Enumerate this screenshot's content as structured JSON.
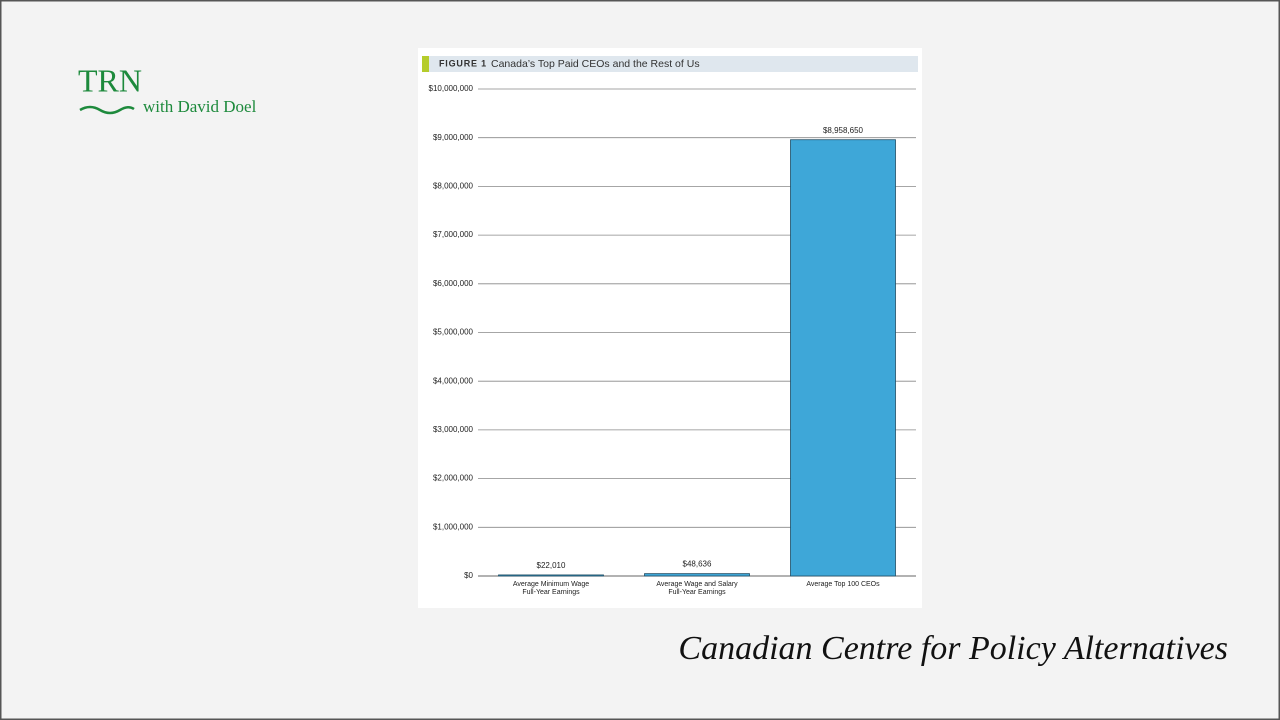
{
  "branding": {
    "logo": "TRN",
    "subtitle": "with David Doel"
  },
  "caption": "Canadian Centre for Policy Alternatives",
  "chart_data": {
    "type": "bar",
    "figure_label": "FIGURE 1",
    "title": "Canada’s Top Paid CEOs and the Rest of Us",
    "categories": [
      [
        "Average Minimum Wage",
        "Full-Year Earnings"
      ],
      [
        "Average Wage and Salary",
        "Full-Year Earnings"
      ],
      [
        "Average Top 100 CEOs"
      ]
    ],
    "values": [
      22010,
      48636,
      8958650
    ],
    "value_labels": [
      "$22,010",
      "$48,636",
      "$8,958,650"
    ],
    "color": "#3ea7d8",
    "ylim": [
      0,
      10000000
    ],
    "yticks": [
      {
        "value": 0,
        "label": "$0"
      },
      {
        "value": 1000000,
        "label": "$1,000,000"
      },
      {
        "value": 2000000,
        "label": "$2,000,000"
      },
      {
        "value": 3000000,
        "label": "$3,000,000"
      },
      {
        "value": 4000000,
        "label": "$4,000,000"
      },
      {
        "value": 5000000,
        "label": "$5,000,000"
      },
      {
        "value": 6000000,
        "label": "$6,000,000"
      },
      {
        "value": 7000000,
        "label": "$7,000,000"
      },
      {
        "value": 8000000,
        "label": "$8,000,000"
      },
      {
        "value": 9000000,
        "label": "$9,000,000"
      },
      {
        "value": 10000000,
        "label": "$10,000,000"
      }
    ],
    "grid": true
  }
}
